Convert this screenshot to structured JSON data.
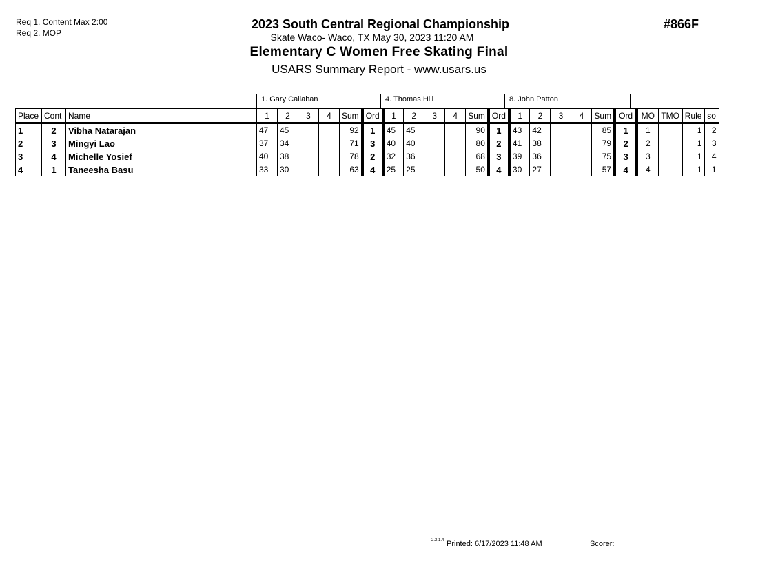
{
  "requirements": [
    "Req  1.  Content Max 2:00",
    "Req  2.  MOP"
  ],
  "header": {
    "title": "2023 South Central Regional Championship",
    "location": "Skate Waco- Waco, TX  May 30, 2023  11:20 AM",
    "event": "Elementary C Women Free Skating Final",
    "report": "USARS Summary Report - www.usars.us",
    "event_code": "#866F"
  },
  "judges": [
    "1.  Gary Callahan",
    "4.  Thomas Hill",
    "8.  John Patton"
  ],
  "columns": {
    "place": "Place",
    "cont": "Cont",
    "name": "Name",
    "judge_cols": [
      "1",
      "2",
      "3",
      "4",
      "Sum",
      "Ord"
    ],
    "mo": "MO",
    "tmo": "TMO",
    "rule": "Rule",
    "so": "so"
  },
  "rows": [
    {
      "place": "1",
      "cont": "2",
      "name": "Vibha Natarajan",
      "j": [
        [
          "47",
          "45",
          "",
          "",
          "92",
          "1"
        ],
        [
          "45",
          "45",
          "",
          "",
          "90",
          "1"
        ],
        [
          "43",
          "42",
          "",
          "",
          "85",
          "1"
        ]
      ],
      "mo": "1",
      "tmo": "",
      "rule": "1",
      "so": "2"
    },
    {
      "place": "2",
      "cont": "3",
      "name": "Mingyi Lao",
      "j": [
        [
          "37",
          "34",
          "",
          "",
          "71",
          "3"
        ],
        [
          "40",
          "40",
          "",
          "",
          "80",
          "2"
        ],
        [
          "41",
          "38",
          "",
          "",
          "79",
          "2"
        ]
      ],
      "mo": "2",
      "tmo": "",
      "rule": "1",
      "so": "3"
    },
    {
      "place": "3",
      "cont": "4",
      "name": "Michelle Yosief",
      "j": [
        [
          "40",
          "38",
          "",
          "",
          "78",
          "2"
        ],
        [
          "32",
          "36",
          "",
          "",
          "68",
          "3"
        ],
        [
          "39",
          "36",
          "",
          "",
          "75",
          "3"
        ]
      ],
      "mo": "3",
      "tmo": "",
      "rule": "1",
      "so": "4"
    },
    {
      "place": "4",
      "cont": "1",
      "name": "Taneesha Basu",
      "j": [
        [
          "33",
          "30",
          "",
          "",
          "63",
          "4"
        ],
        [
          "25",
          "25",
          "",
          "",
          "50",
          "4"
        ],
        [
          "30",
          "27",
          "",
          "",
          "57",
          "4"
        ]
      ],
      "mo": "4",
      "tmo": "",
      "rule": "1",
      "so": "1"
    }
  ],
  "footer": {
    "version": "2.2.1.4",
    "printed": "Printed:  6/17/2023  11:48 AM",
    "scorer": "Scorer:"
  }
}
